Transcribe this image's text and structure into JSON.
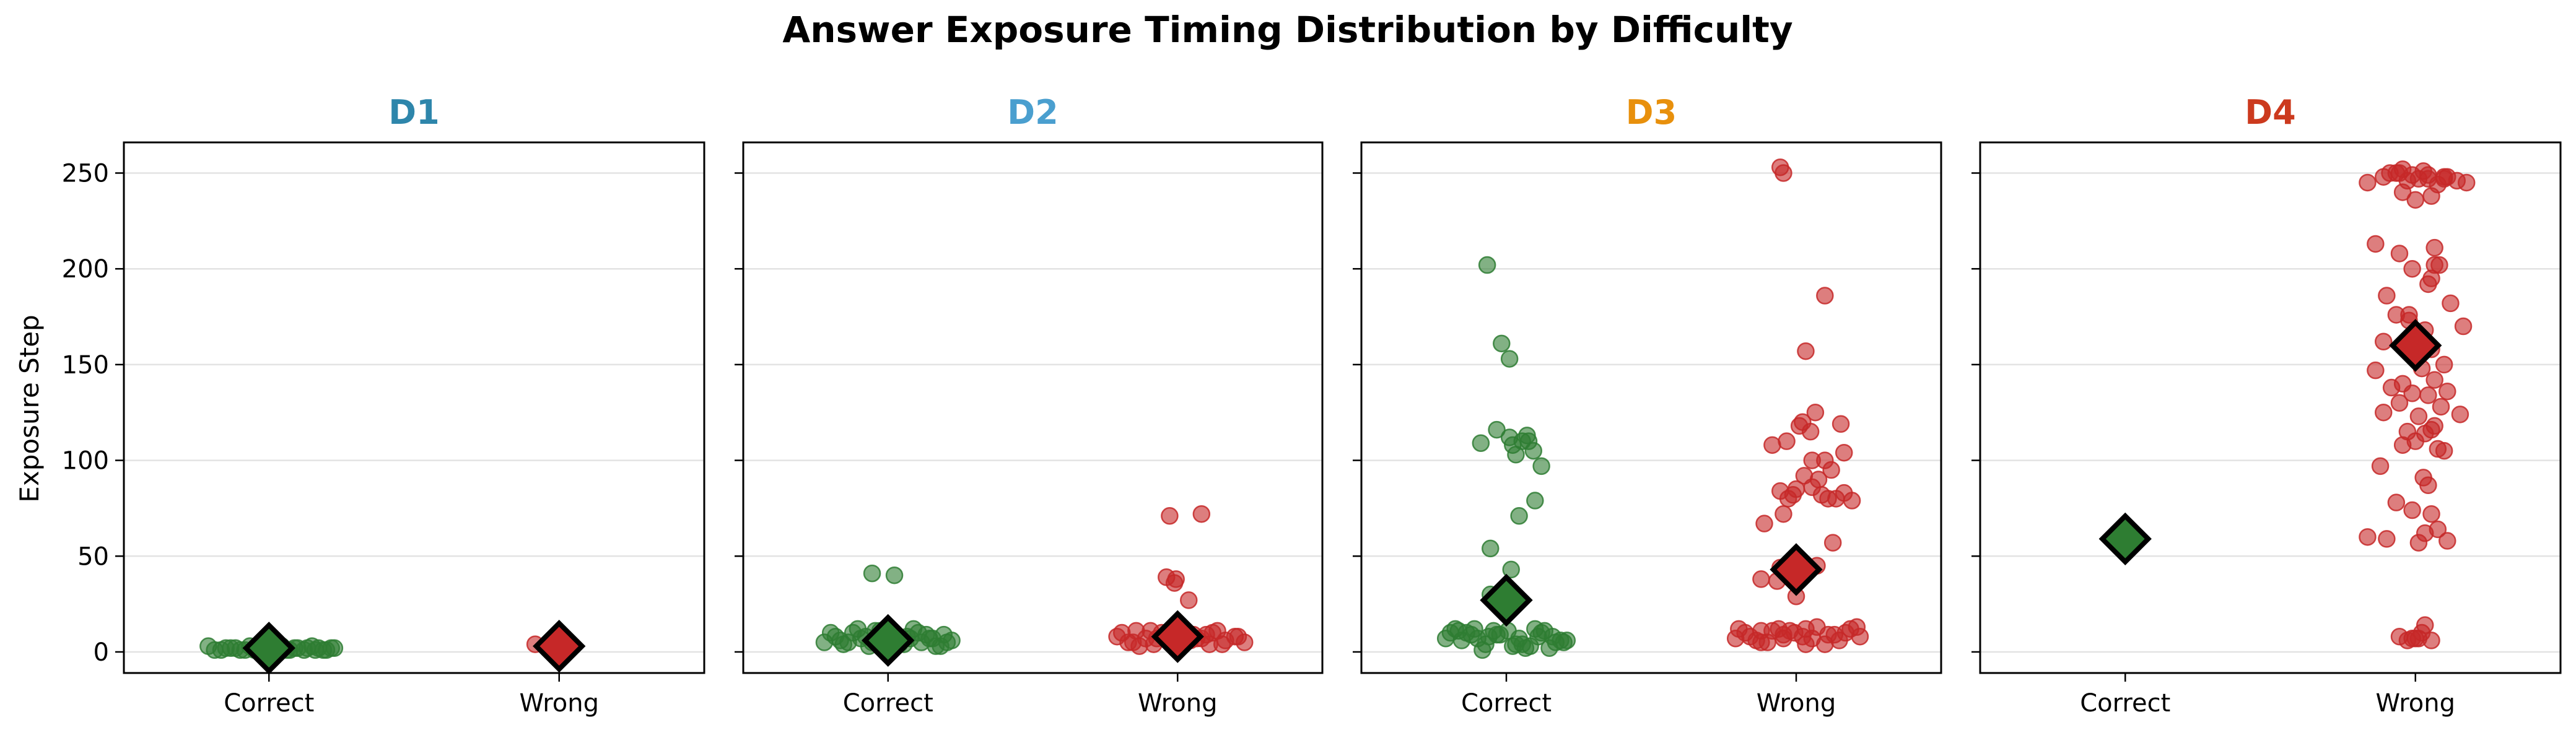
{
  "figure": {
    "title": "Answer Exposure Timing Distribution by Difficulty",
    "ylabel": "Exposure Step"
  },
  "chart_data": {
    "type": "scatter",
    "title": "Answer Exposure Timing Distribution by Difficulty",
    "ylabel": "Exposure Step",
    "ylim": [
      -11,
      266
    ],
    "yticks": [
      0,
      50,
      100,
      150,
      200,
      250
    ],
    "categories": [
      "Correct",
      "Wrong"
    ],
    "grid": "horizontal",
    "colors": {
      "Correct": "#2e7d32",
      "Wrong": "#c62828",
      "median_edge": "#000000"
    },
    "panels": [
      {
        "name": "D1",
        "title_color": "#2e86ab",
        "groups": [
          {
            "label": "Correct",
            "median": 2,
            "jitter": [
              -0.38,
              -0.3,
              -0.24,
              -0.18,
              -0.12,
              -0.07,
              -0.02,
              0.03,
              0.08,
              0.13,
              0.18,
              0.22,
              0.27,
              0.31,
              0.36,
              0.41,
              -0.34,
              -0.21,
              -0.09,
              0.05,
              0.16,
              0.29,
              0.39,
              -0.27,
              -0.15,
              0.0,
              0.11,
              0.24,
              0.34,
              -0.05
            ],
            "values": [
              3,
              1,
              2,
              1,
              3,
              2,
              1,
              2,
              3,
              1,
              2,
              1,
              3,
              2,
              1,
              2,
              1,
              2,
              1,
              3,
              2,
              1,
              2,
              2,
              1,
              3,
              1,
              2,
              1,
              2
            ]
          },
          {
            "label": "Wrong",
            "median": 3,
            "jitter": [
              -0.15
            ],
            "values": [
              4
            ]
          }
        ]
      },
      {
        "name": "D2",
        "title_color": "#4a9fcf",
        "groups": [
          {
            "label": "Correct",
            "median": 6,
            "jitter": [
              -0.4,
              -0.33,
              -0.28,
              -0.22,
              -0.17,
              -0.12,
              -0.08,
              -0.03,
              0.02,
              0.07,
              0.12,
              0.16,
              0.21,
              0.26,
              0.3,
              0.35,
              0.4,
              -0.36,
              -0.25,
              -0.14,
              -0.05,
              0.05,
              0.14,
              0.24,
              0.33,
              -0.3,
              -0.19,
              -0.1,
              0.0,
              0.1,
              0.19,
              0.28,
              0.37,
              -0.1,
              0.04
            ],
            "values": [
              5,
              8,
              4,
              10,
              7,
              3,
              11,
              6,
              9,
              4,
              8,
              12,
              5,
              7,
              3,
              9,
              6,
              10,
              5,
              8,
              11,
              4,
              7,
              9,
              3,
              6,
              12,
              5,
              8,
              4,
              10,
              7,
              5,
              41,
              40
            ]
          },
          {
            "label": "Wrong",
            "median": 8,
            "jitter": [
              -0.38,
              -0.31,
              -0.26,
              -0.2,
              -0.15,
              -0.1,
              -0.05,
              0.0,
              0.05,
              0.1,
              0.15,
              0.2,
              0.25,
              0.3,
              0.36,
              0.42,
              -0.35,
              -0.24,
              -0.13,
              -0.02,
              0.08,
              0.18,
              0.28,
              0.38,
              -0.28,
              -0.17,
              0.12,
              0.22,
              -0.05,
              -0.02,
              0.15,
              -0.07,
              -0.01,
              0.07
            ],
            "values": [
              8,
              5,
              11,
              7,
              4,
              10,
              6,
              12,
              5,
              9,
              7,
              4,
              11,
              6,
              8,
              5,
              10,
              3,
              7,
              12,
              6,
              9,
              4,
              8,
              5,
              11,
              7,
              10,
              71,
              36,
              72,
              39,
              38,
              27
            ]
          }
        ]
      },
      {
        "name": "D3",
        "title_color": "#e8900c",
        "groups": [
          {
            "label": "Correct",
            "median": 27,
            "jitter": [
              -0.35,
              -0.28,
              -0.2,
              -0.13,
              -0.06,
              0.01,
              0.08,
              0.15,
              0.22,
              0.29,
              0.36,
              -0.32,
              -0.18,
              -0.04,
              0.1,
              0.24,
              0.38,
              -0.25,
              -0.11,
              0.04,
              0.18,
              0.31,
              -0.38,
              -0.22,
              -0.08,
              0.06,
              0.2,
              0.34,
              -0.15,
              0.12,
              -0.3,
              0.27,
              -0.16,
              0.06,
              0.14,
              -0.06,
              0.02,
              0.04,
              0.1,
              0.13,
              0.17,
              0.22,
              0.18,
              0.08,
              -0.1,
              0.03,
              -0.1,
              -0.12,
              -0.03,
              0.02
            ],
            "values": [
              10,
              6,
              12,
              4,
              9,
              11,
              7,
              3,
              10,
              8,
              5,
              12,
              7,
              9,
              4,
              11,
              6,
              10,
              8,
              3,
              12,
              5,
              7,
              9,
              11,
              4,
              8,
              6,
              1,
              2,
              11,
              2,
              109,
              103,
              110,
              116,
              112,
              108,
              110,
              113,
              105,
              97,
              79,
              71,
              54,
              43,
              30,
              202,
              161,
              153
            ]
          },
          {
            "label": "Wrong",
            "median": 43,
            "jitter": [
              -0.36,
              -0.29,
              -0.22,
              -0.15,
              -0.08,
              -0.01,
              0.06,
              0.13,
              0.2,
              0.27,
              0.34,
              0.4,
              -0.32,
              -0.18,
              -0.04,
              0.1,
              0.24,
              0.38,
              -0.25,
              -0.11,
              0.04,
              0.18,
              0.31,
              -0.38,
              -0.22,
              -0.08,
              0.06,
              -0.05,
              -0.02,
              0.1,
              0.2,
              0.3,
              0.35,
              -0.1,
              0.0,
              0.16,
              0.25,
              0.14,
              0.05,
              0.22,
              0.18,
              0.3,
              -0.06,
              0.09,
              0.02,
              0.12,
              0.28,
              0.1,
              -0.15,
              0.04,
              -0.08,
              -0.2,
              0.23,
              0.13,
              -0.1,
              -0.12,
              -0.22,
              0.0,
              0.06,
              0.18,
              -0.08,
              -0.1
            ],
            "values": [
              12,
              8,
              5,
              11,
              7,
              10,
              4,
              13,
              9,
              6,
              12,
              8,
              10,
              5,
              11,
              7,
              9,
              13,
              6,
              12,
              8,
              4,
              10,
              7,
              11,
              9,
              12,
              80,
              82,
              86,
              80,
              83,
              79,
              84,
              85,
              82,
              80,
              90,
              92,
              95,
              100,
              104,
              110,
              115,
              118,
              125,
              119,
              100,
              108,
              120,
              72,
              67,
              57,
              45,
              44,
              37,
              38,
              29,
              157,
              186,
              250,
              253
            ]
          }
        ]
      },
      {
        "name": "D4",
        "title_color": "#cc3a1e",
        "groups": [
          {
            "label": "Correct",
            "median": 59,
            "jitter": [],
            "values": []
          },
          {
            "label": "Wrong",
            "median": 160,
            "jitter": [
              -0.3,
              -0.2,
              -0.12,
              -0.05,
              0.02,
              0.08,
              0.14,
              0.2,
              0.26,
              0.32,
              -0.08,
              0.0,
              0.1,
              0.18,
              -0.16,
              0.05,
              -0.25,
              -0.1,
              0.12,
              -0.02,
              0.15,
              0.08,
              0.22,
              -0.18,
              0.3,
              -0.12,
              -0.04,
              0.06,
              -0.2,
              0.1,
              0.0,
              0.18,
              -0.25,
              0.04,
              -0.08,
              0.12,
              -0.15,
              0.2,
              -0.02,
              0.08,
              -0.1,
              0.16,
              -0.2,
              0.02,
              0.28,
              0.12,
              -0.05,
              0.1,
              0.06,
              0.0,
              -0.08,
              0.14,
              0.18,
              -0.22,
              0.05,
              0.08,
              -0.12,
              -0.02,
              0.1,
              0.14,
              -0.3,
              0.06,
              -0.18,
              0.02,
              0.2,
              0.1,
              -0.04,
              0.12,
              -0.1,
              0.18,
              -0.08,
              -0.02,
              0.08,
              0.02,
              -0.05,
              0.04,
              0.0,
              -0.1,
              -0.02,
              0.06,
              0.1
            ],
            "values": [
              245,
              248,
              250,
              246,
              247,
              249,
              244,
              248,
              246,
              245,
              240,
              236,
              238,
              247,
              250,
              251,
              213,
              208,
              211,
              200,
              202,
              192,
              182,
              186,
              170,
              176,
              173,
              168,
              162,
              158,
              155,
              150,
              147,
              148,
              140,
              142,
              138,
              136,
              135,
              134,
              130,
              128,
              125,
              123,
              124,
              118,
              115,
              116,
              114,
              110,
              108,
              106,
              105,
              97,
              91,
              87,
              78,
              74,
              72,
              64,
              60,
              62,
              59,
              57,
              58,
              195,
              176,
              202,
              250,
              248,
              252,
              249,
              247,
              7,
              6,
              10,
              7,
              8,
              7,
              14,
              6
            ]
          }
        ]
      }
    ]
  }
}
